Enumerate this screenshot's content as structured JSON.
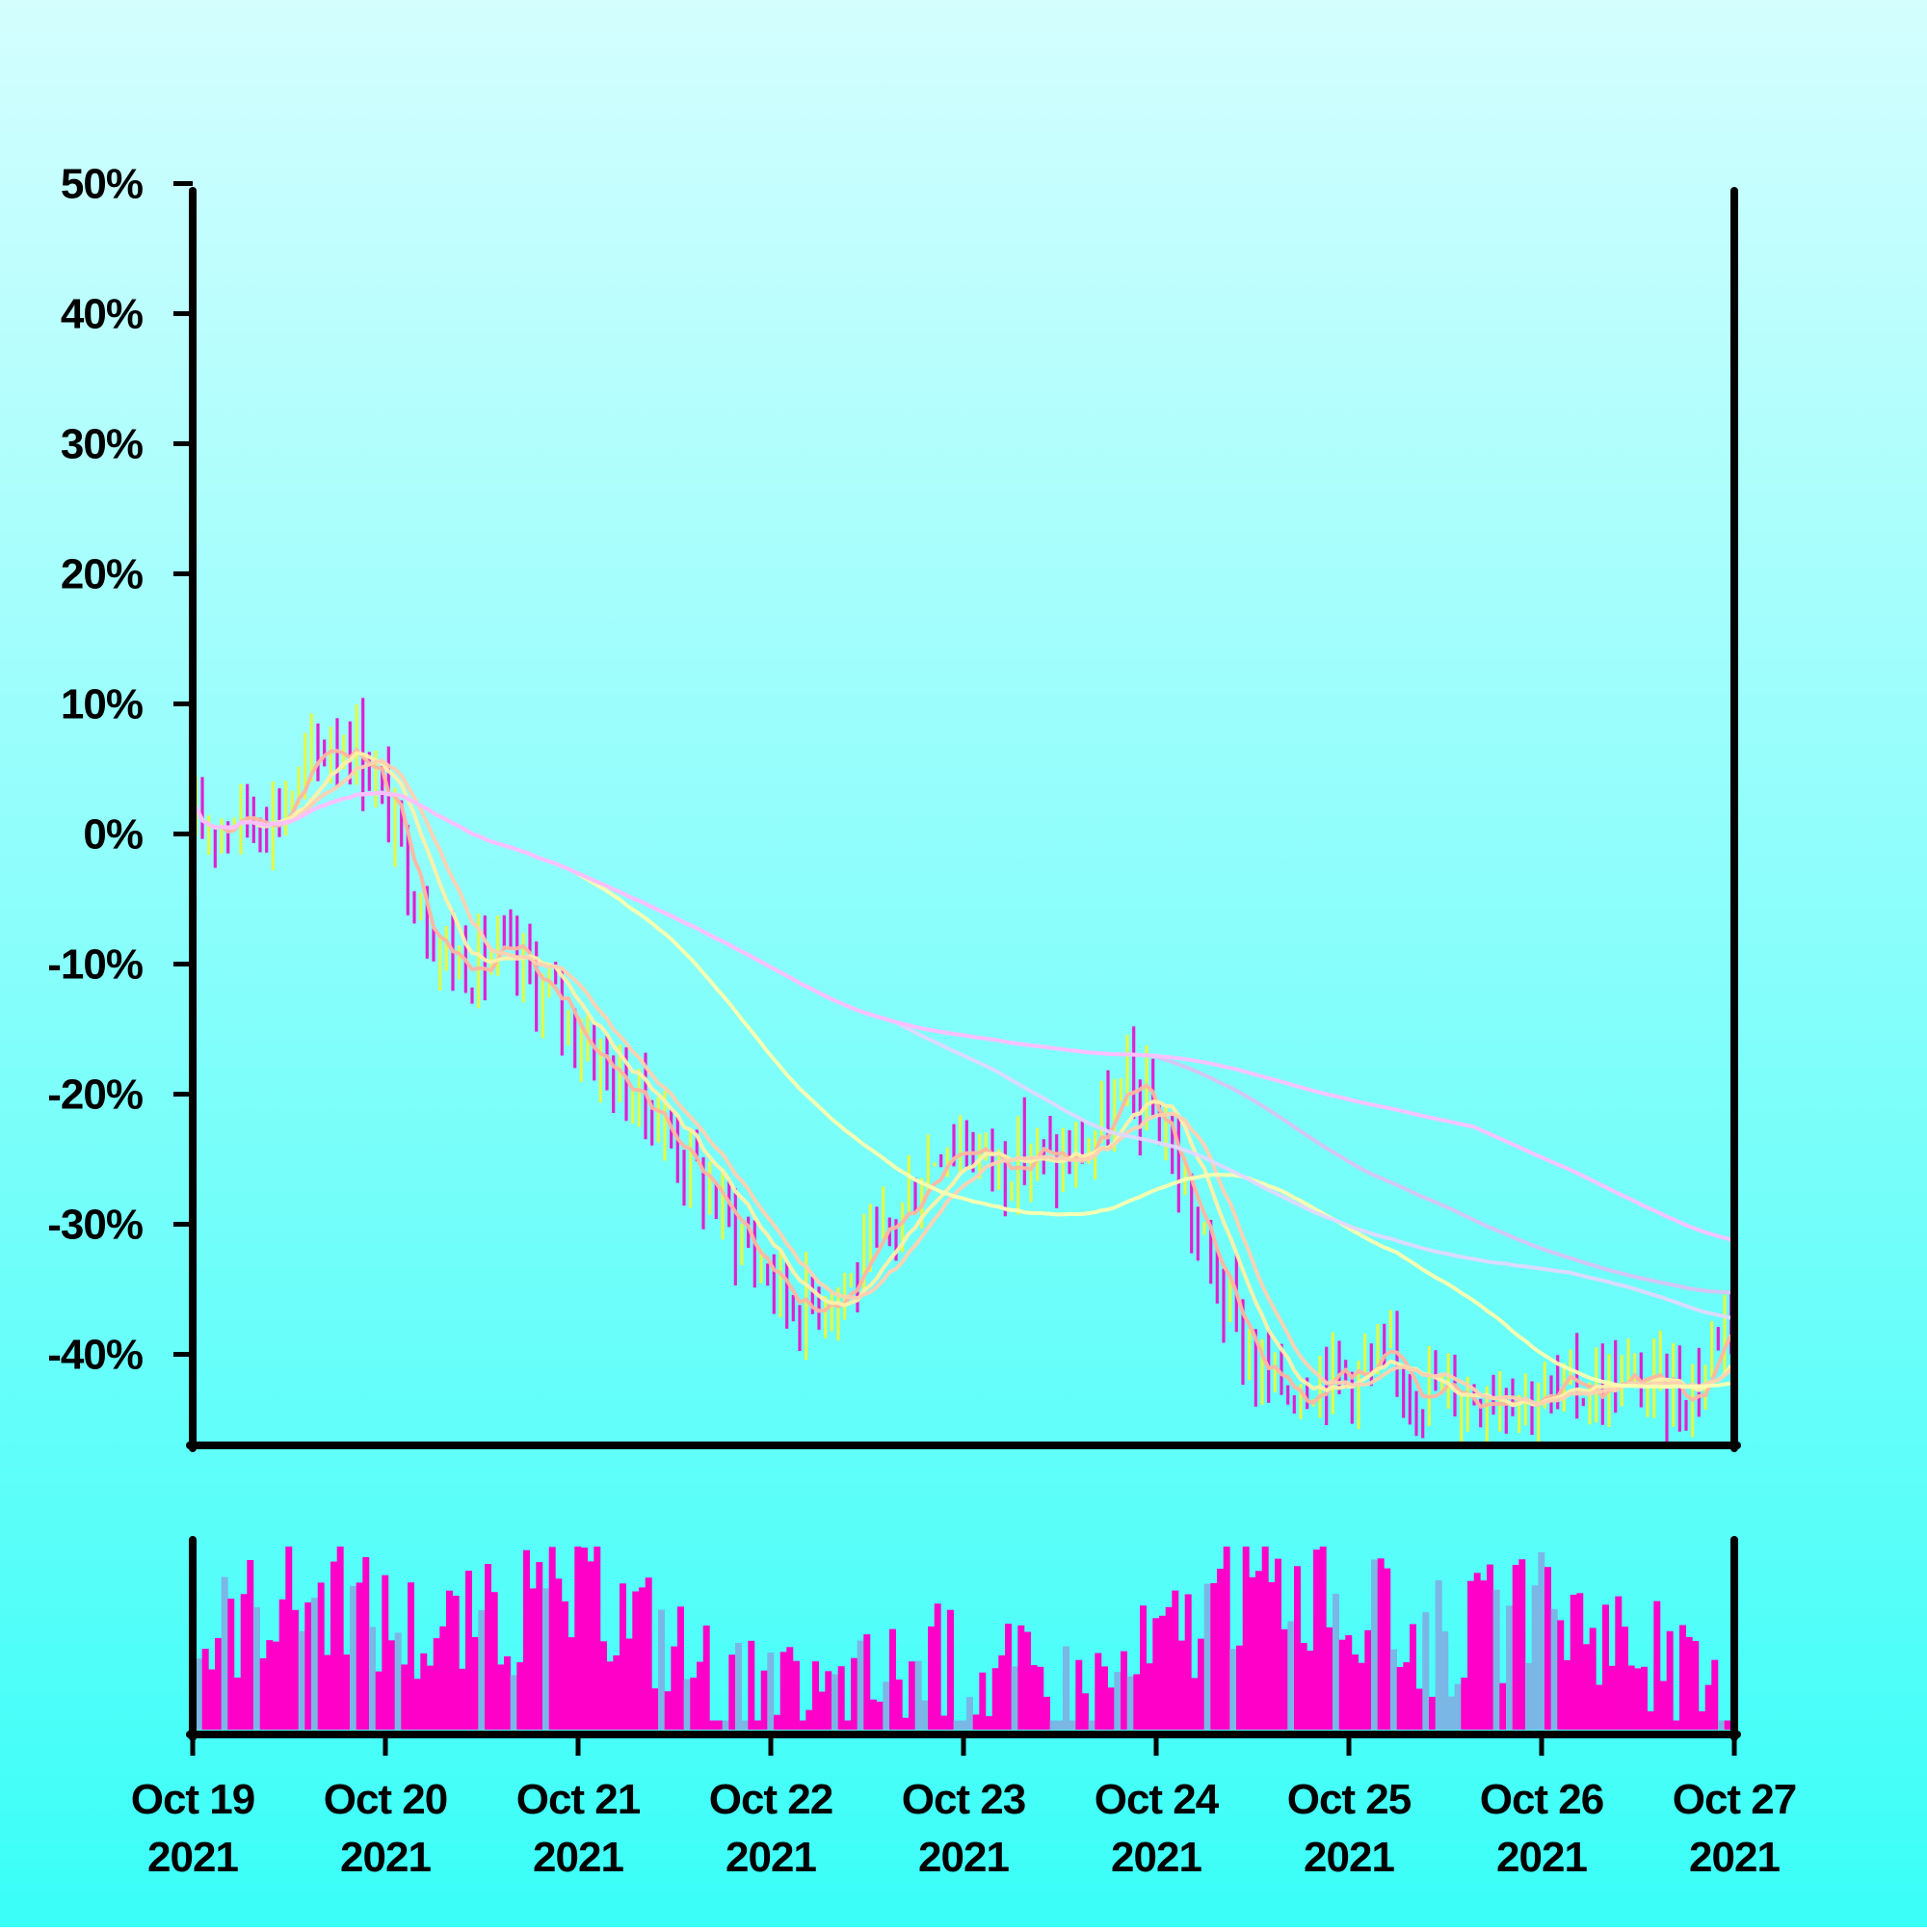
{
  "chart_data": {
    "type": "candlestick",
    "y_axis": {
      "unit": "percent change",
      "ticks": [
        "50%",
        "40%",
        "30%",
        "20%",
        "10%",
        "0%",
        "-10%",
        "-20%",
        "-30%",
        "-40%"
      ],
      "tick_values": [
        50,
        40,
        30,
        20,
        10,
        0,
        -10,
        -20,
        -30,
        -40
      ],
      "range": [
        -47,
        53
      ]
    },
    "x_axis": {
      "ticks": [
        {
          "month_day": "Oct 19",
          "year": "2021"
        },
        {
          "month_day": "Oct 20",
          "year": "2021"
        },
        {
          "month_day": "Oct 21",
          "year": "2021"
        },
        {
          "month_day": "Oct 22",
          "year": "2021"
        },
        {
          "month_day": "Oct 23",
          "year": "2021"
        },
        {
          "month_day": "Oct 24",
          "year": "2021"
        },
        {
          "month_day": "Oct 25",
          "year": "2021"
        },
        {
          "month_day": "Oct 26",
          "year": "2021"
        },
        {
          "month_day": "Oct 27",
          "year": "2021"
        }
      ],
      "range_days": [
        0,
        8
      ]
    },
    "price_path": [
      [
        0.0,
        0
      ],
      [
        0.1,
        1
      ],
      [
        0.2,
        1.5
      ],
      [
        0.3,
        1.5
      ],
      [
        0.45,
        2
      ],
      [
        0.6,
        5
      ],
      [
        0.72,
        7.5
      ],
      [
        0.85,
        7
      ],
      [
        0.95,
        4
      ],
      [
        1.05,
        0
      ],
      [
        1.15,
        -4
      ],
      [
        1.3,
        -9
      ],
      [
        1.45,
        -10
      ],
      [
        1.6,
        -9.5
      ],
      [
        1.75,
        -11
      ],
      [
        1.9,
        -13.5
      ],
      [
        2.05,
        -16
      ],
      [
        2.2,
        -19
      ],
      [
        2.4,
        -21.5
      ],
      [
        2.6,
        -26
      ],
      [
        2.8,
        -30
      ],
      [
        3.0,
        -34
      ],
      [
        3.15,
        -36.5
      ],
      [
        3.3,
        -35
      ],
      [
        3.45,
        -34
      ],
      [
        3.6,
        -31
      ],
      [
        3.75,
        -27
      ],
      [
        3.9,
        -23
      ],
      [
        4.05,
        -24
      ],
      [
        4.2,
        -25.5
      ],
      [
        4.35,
        -24.5
      ],
      [
        4.5,
        -25.5
      ],
      [
        4.6,
        -24.5
      ],
      [
        4.75,
        -22
      ],
      [
        4.85,
        -19.5
      ],
      [
        4.95,
        -21
      ],
      [
        5.05,
        -23
      ],
      [
        5.15,
        -28
      ],
      [
        5.3,
        -34
      ],
      [
        5.45,
        -39
      ],
      [
        5.55,
        -42
      ],
      [
        5.7,
        -42.5
      ],
      [
        5.85,
        -41
      ],
      [
        6.0,
        -41.5
      ],
      [
        6.2,
        -41
      ],
      [
        6.4,
        -42.5
      ],
      [
        6.6,
        -43
      ],
      [
        6.8,
        -42
      ],
      [
        7.0,
        -43.5
      ],
      [
        7.2,
        -42.5
      ],
      [
        7.4,
        -42
      ],
      [
        7.6,
        -42.5
      ],
      [
        7.75,
        -43
      ],
      [
        7.85,
        -41
      ],
      [
        7.95,
        -36
      ],
      [
        8.0,
        -36
      ]
    ],
    "moving_averages": [
      {
        "color": "#FFB6A0",
        "window": 5
      },
      {
        "color": "#FFF0A8",
        "window": 10
      },
      {
        "color": "#FFD1B0",
        "window": 14
      },
      {
        "color": "#FAFFB0",
        "window": 60
      },
      {
        "color": "#E0D8FF",
        "window": 110
      },
      {
        "color": "#D8C4F4",
        "window": 150
      },
      {
        "color": "#FFC0FF",
        "window": 200
      }
    ],
    "candle_count": 240,
    "colors": {
      "background_top": "#D4FEFE",
      "background_bottom": "#3AFEF8",
      "up_candle": "#E2F84A",
      "down_candle": "#E020D0",
      "volume": "#FF00C8",
      "volume_alt": "#7AB6E6",
      "axis": "#000000"
    }
  }
}
